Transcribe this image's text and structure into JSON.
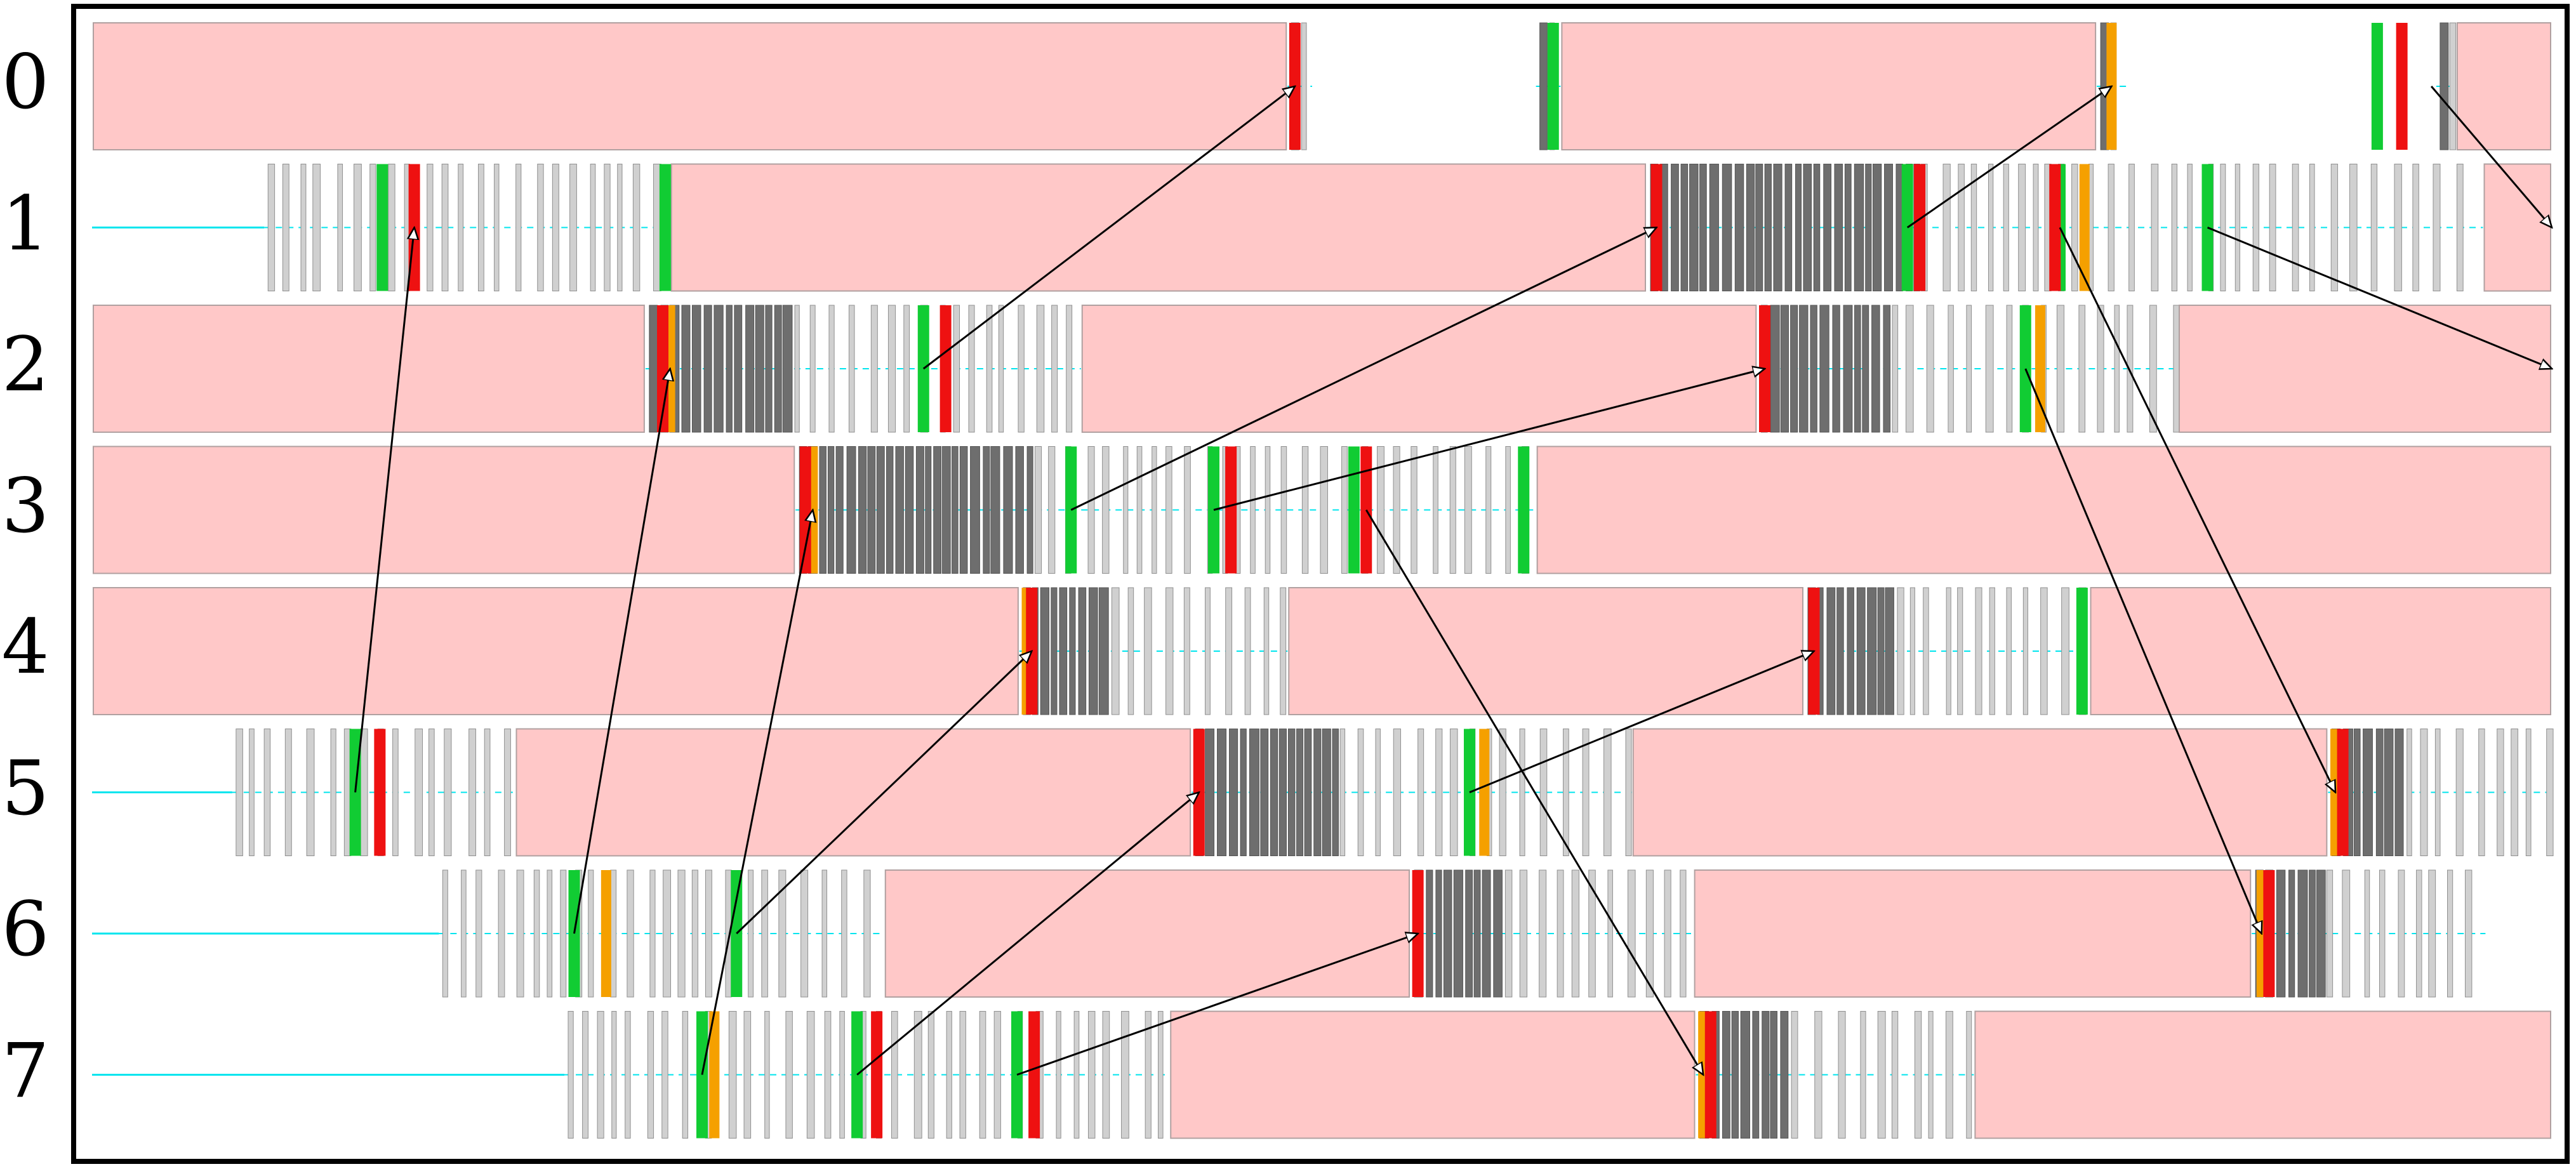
{
  "rows": [
    {
      "label": "0",
      "idle": [
        [
          0,
          0.486
        ],
        [
          0.597,
          0.815
        ],
        [
          0.961,
          1.0
        ]
      ],
      "compute": [
        [
          0.486,
          0.496
        ],
        [
          0.587,
          0.597
        ],
        [
          0.815,
          0.827
        ],
        [
          0.953,
          0.961
        ]
      ],
      "red": [
        0.489,
        0.939
      ],
      "green": [
        0.594,
        0.929
      ],
      "orange": [
        0.821
      ]
    },
    {
      "label": "1",
      "start": 0.07,
      "idle": [
        [
          0.235,
          0.632
        ],
        [
          0.972,
          1.0
        ]
      ],
      "compute": [
        [
          0.07,
          0.235
        ],
        [
          0.632,
          0.972
        ]
      ],
      "red": [
        0.131,
        0.636,
        0.743,
        0.798
      ],
      "green": [
        0.118,
        0.233,
        0.738,
        0.8,
        0.86
      ],
      "orange": [
        0.81
      ]
    },
    {
      "label": "2",
      "idle": [
        [
          0,
          0.225
        ],
        [
          0.402,
          0.677
        ],
        [
          0.848,
          1.0
        ]
      ],
      "compute": [
        [
          0.225,
          0.402
        ],
        [
          0.677,
          0.848
        ]
      ],
      "red": [
        0.232,
        0.347,
        0.68
      ],
      "green": [
        0.338,
        0.786
      ],
      "orange": [
        0.235,
        0.792
      ]
    },
    {
      "label": "3",
      "idle": [
        [
          0,
          0.286
        ],
        [
          0.587,
          1.0
        ]
      ],
      "compute": [
        [
          0.286,
          0.587
        ]
      ],
      "red": [
        0.29,
        0.463,
        0.518
      ],
      "green": [
        0.398,
        0.456,
        0.513,
        0.582
      ],
      "orange": [
        0.293
      ]
    },
    {
      "label": "4",
      "idle": [
        [
          0,
          0.377
        ],
        [
          0.486,
          0.696
        ],
        [
          0.812,
          1.0
        ]
      ],
      "compute": [
        [
          0.377,
          0.486
        ],
        [
          0.696,
          0.812
        ]
      ],
      "red": [
        0.382,
        0.7
      ],
      "green": [
        0.809
      ],
      "orange": [
        0.38
      ]
    },
    {
      "label": "5",
      "start": 0.057,
      "idle": [
        [
          0.172,
          0.447
        ],
        [
          0.626,
          0.909
        ]
      ],
      "compute": [
        [
          0.057,
          0.172
        ],
        [
          0.447,
          0.626
        ],
        [
          0.909,
          1.0
        ]
      ],
      "red": [
        0.117,
        0.45,
        0.915
      ],
      "green": [
        0.107,
        0.56
      ],
      "orange": [
        0.566,
        0.912
      ]
    },
    {
      "label": "6",
      "start": 0.141,
      "idle": [
        [
          0.322,
          0.536
        ],
        [
          0.651,
          0.878
        ]
      ],
      "compute": [
        [
          0.141,
          0.322
        ],
        [
          0.536,
          0.651
        ],
        [
          0.878,
          0.973
        ]
      ],
      "red": [
        0.539,
        0.885
      ],
      "green": [
        0.196,
        0.262
      ],
      "orange": [
        0.209,
        0.882
      ]
    },
    {
      "label": "7",
      "start": 0.192,
      "idle": [
        [
          0.438,
          0.652
        ],
        [
          0.765,
          1.0
        ]
      ],
      "compute": [
        [
          0.192,
          0.438
        ],
        [
          0.652,
          0.765
        ]
      ],
      "red": [
        0.319,
        0.383,
        0.658
      ],
      "green": [
        0.248,
        0.311,
        0.376
      ],
      "orange": [
        0.253,
        0.655
      ]
    }
  ],
  "messages": [
    {
      "from": 5,
      "from_t": 0.107,
      "to": 1,
      "to_t": 0.131
    },
    {
      "from": 6,
      "from_t": 0.196,
      "to": 2,
      "to_t": 0.235
    },
    {
      "from": 7,
      "from_t": 0.248,
      "to": 3,
      "to_t": 0.293
    },
    {
      "from": 2,
      "from_t": 0.338,
      "to": 0,
      "to_t": 0.489
    },
    {
      "from": 6,
      "from_t": 0.262,
      "to": 4,
      "to_t": 0.382
    },
    {
      "from": 7,
      "from_t": 0.311,
      "to": 5,
      "to_t": 0.45
    },
    {
      "from": 3,
      "from_t": 0.398,
      "to": 1,
      "to_t": 0.636
    },
    {
      "from": 7,
      "from_t": 0.376,
      "to": 6,
      "to_t": 0.539
    },
    {
      "from": 3,
      "from_t": 0.456,
      "to": 2,
      "to_t": 0.68
    },
    {
      "from": 5,
      "from_t": 0.56,
      "to": 4,
      "to_t": 0.7
    },
    {
      "from": 3,
      "from_t": 0.518,
      "to": 7,
      "to_t": 0.655
    },
    {
      "from": 1,
      "from_t": 0.738,
      "to": 0,
      "to_t": 0.821
    },
    {
      "from": 1,
      "from_t": 0.8,
      "to": 5,
      "to_t": 0.912
    },
    {
      "from": 2,
      "from_t": 0.786,
      "to": 6,
      "to_t": 0.882
    },
    {
      "from": 0,
      "from_t": 0.951,
      "to": 1,
      "to_t": 1.0
    },
    {
      "from": 1,
      "from_t": 0.86,
      "to": 2,
      "to_t": 1.0
    }
  ],
  "colors": {
    "idle": "#ffc8c8",
    "idle_edge": "#b0a0a0",
    "light_bar": "#d0d0d0",
    "light_bar_edge": "#909090",
    "dark_bar": "#6e6e6e",
    "cyan": "#00e5ee",
    "red": "#ee1111",
    "green": "#11cc33",
    "orange": "#f5a000",
    "arrow": "#000000"
  }
}
